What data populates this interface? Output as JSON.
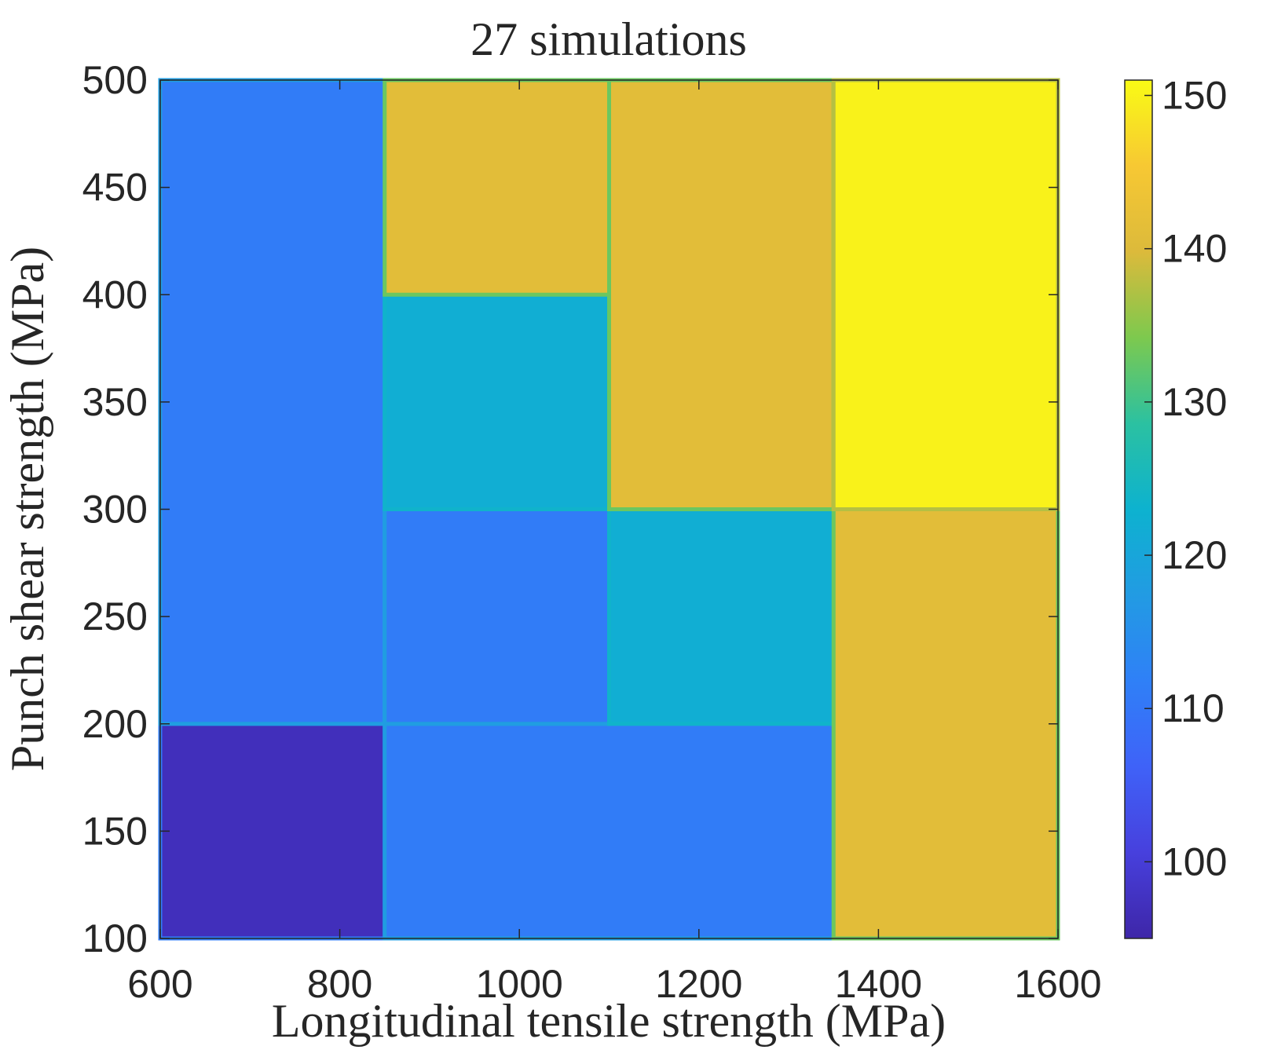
{
  "chart_data": {
    "type": "heatmap",
    "title": "27 simulations",
    "xlabel": "Longitudinal tensile strength (MPa)",
    "ylabel": "Punch shear strength (MPa)",
    "xlim": [
      600,
      1600
    ],
    "ylim": [
      100,
      500
    ],
    "x_ticks": [
      600,
      800,
      1000,
      1200,
      1400,
      1600
    ],
    "y_ticks": [
      100,
      150,
      200,
      250,
      300,
      350,
      400,
      450,
      500
    ],
    "colorbar": {
      "range": [
        95,
        151
      ],
      "ticks": [
        100,
        110,
        120,
        130,
        140,
        150
      ],
      "colormap": "parula"
    },
    "grid": false,
    "regions": [
      {
        "x": [
          600,
          850
        ],
        "y": [
          100,
          200
        ],
        "value": 97
      },
      {
        "x": [
          600,
          850
        ],
        "y": [
          200,
          500
        ],
        "value": 111
      },
      {
        "x": [
          850,
          1350
        ],
        "y": [
          100,
          200
        ],
        "value": 111
      },
      {
        "x": [
          850,
          1100
        ],
        "y": [
          200,
          300
        ],
        "value": 111
      },
      {
        "x": [
          850,
          1100
        ],
        "y": [
          300,
          400
        ],
        "value": 122
      },
      {
        "x": [
          850,
          1100
        ],
        "y": [
          400,
          500
        ],
        "value": 141
      },
      {
        "x": [
          1100,
          1350
        ],
        "y": [
          200,
          300
        ],
        "value": 122
      },
      {
        "x": [
          1100,
          1350
        ],
        "y": [
          300,
          500
        ],
        "value": 141
      },
      {
        "x": [
          1350,
          1600
        ],
        "y": [
          100,
          300
        ],
        "value": 141
      },
      {
        "x": [
          1350,
          1600
        ],
        "y": [
          300,
          500
        ],
        "value": 150
      }
    ]
  }
}
